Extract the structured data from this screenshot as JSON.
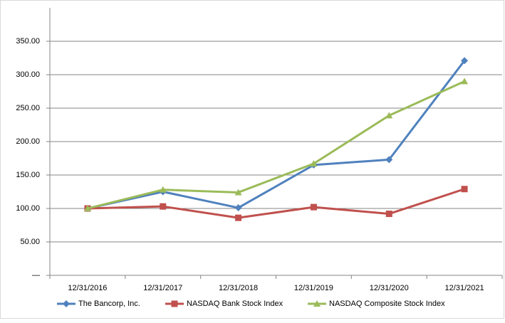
{
  "chart_data": {
    "type": "line",
    "categories": [
      "12/31/2016",
      "12/31/2017",
      "12/31/2018",
      "12/31/2019",
      "12/31/2020",
      "12/31/2021"
    ],
    "series": [
      {
        "name": "The Bancorp, Inc.",
        "color": "#4f81bd",
        "marker": "diamond",
        "values": [
          100,
          125,
          101,
          165,
          173,
          321
        ]
      },
      {
        "name": "NASDAQ Bank Stock Index",
        "color": "#c0504d",
        "marker": "square",
        "values": [
          100,
          103,
          86,
          102,
          92,
          129
        ]
      },
      {
        "name": "NASDAQ Composite Stock Index",
        "color": "#9bbb59",
        "marker": "triangle",
        "values": [
          100,
          128,
          124,
          167,
          239,
          290
        ]
      }
    ],
    "ylim": [
      0,
      400
    ],
    "yticks": [
      {
        "value": 0,
        "label": "—"
      },
      {
        "value": 50,
        "label": "50.00"
      },
      {
        "value": 100,
        "label": "100.00"
      },
      {
        "value": 150,
        "label": "150.00"
      },
      {
        "value": 200,
        "label": "200.00"
      },
      {
        "value": 250,
        "label": "250.00"
      },
      {
        "value": 300,
        "label": "300.00"
      },
      {
        "value": 350,
        "label": "350.00"
      }
    ],
    "grid": true,
    "legend": "bottom"
  }
}
